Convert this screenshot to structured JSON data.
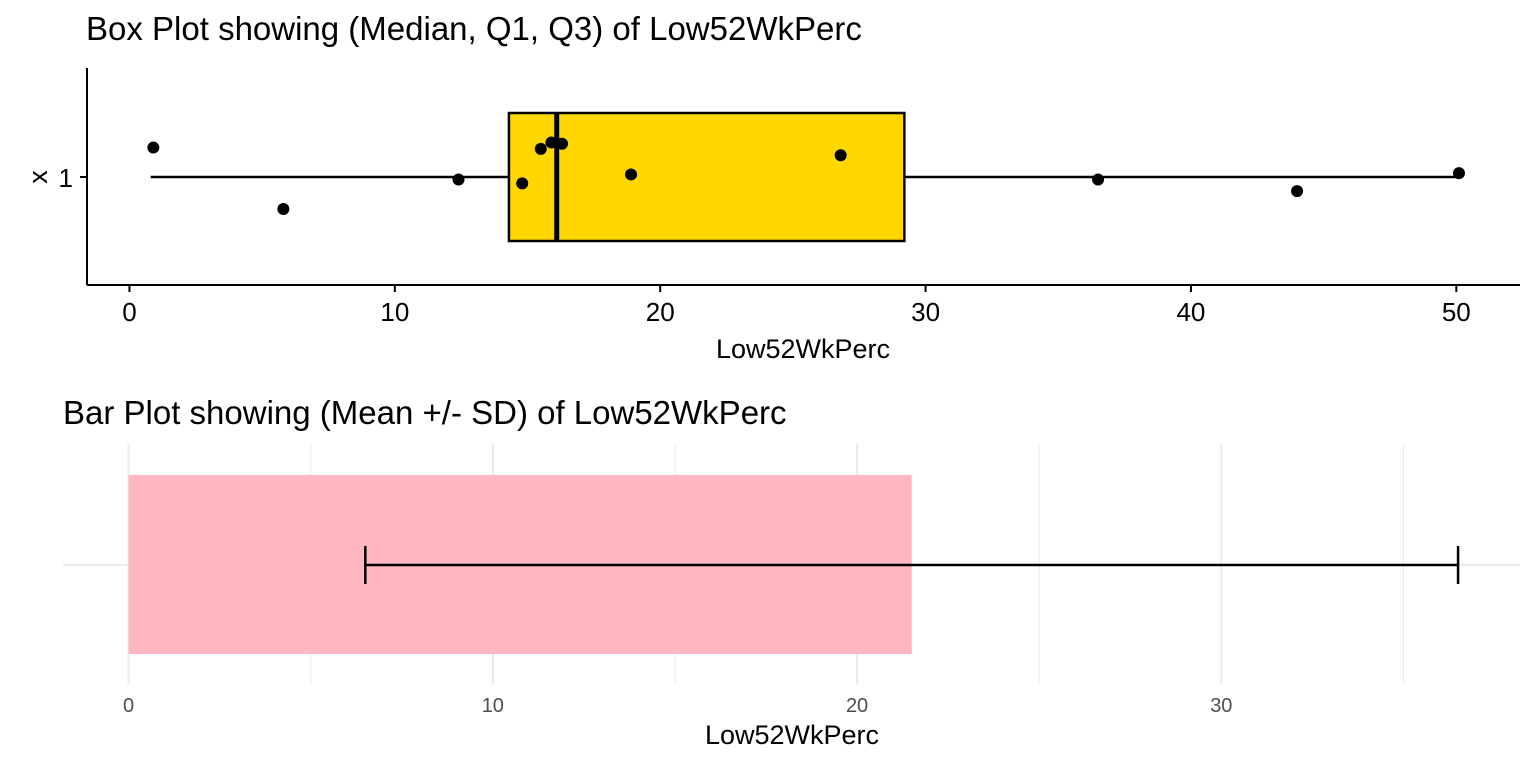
{
  "chart_data": [
    {
      "type": "box",
      "title": "Box Plot showing (Median, Q1, Q3) of Low52WkPerc",
      "xlabel": "Low52WkPerc",
      "ylabel": "x",
      "y_category": "1",
      "xlim": [
        -1.6,
        52.4
      ],
      "x_ticks": [
        0,
        10,
        20,
        30,
        40,
        50
      ],
      "box": {
        "min": 0.8,
        "q1": 14.3,
        "median": 16.1,
        "q3": 29.2,
        "max": 50.1
      },
      "points": [
        {
          "x": 0.9,
          "jitter": 0.23
        },
        {
          "x": 5.8,
          "jitter": -0.25
        },
        {
          "x": 12.4,
          "jitter": -0.02
        },
        {
          "x": 14.8,
          "jitter": -0.05
        },
        {
          "x": 15.5,
          "jitter": 0.22
        },
        {
          "x": 15.9,
          "jitter": 0.27
        },
        {
          "x": 16.3,
          "jitter": 0.26
        },
        {
          "x": 18.9,
          "jitter": 0.02
        },
        {
          "x": 26.8,
          "jitter": 0.17
        },
        {
          "x": 36.5,
          "jitter": -0.02
        },
        {
          "x": 44.0,
          "jitter": -0.11
        },
        {
          "x": 50.1,
          "jitter": 0.03
        }
      ],
      "colors": {
        "box_fill": "#FFD700",
        "outline": "#000000",
        "points": "#000000"
      }
    },
    {
      "type": "bar",
      "title": "Bar Plot showing (Mean +/- SD) of Low52WkPerc",
      "xlabel": "Low52WkPerc",
      "xlim": [
        -1.8,
        38.2
      ],
      "x_ticks": [
        0,
        10,
        20,
        30
      ],
      "grid": true,
      "mean": 21.5,
      "sd_low": 6.5,
      "sd_high": 36.5,
      "colors": {
        "bar_fill": "#FFB6C1",
        "errorbar": "#000000",
        "grid": "#EBEBEB",
        "tick_text": "#4D4D4D"
      }
    }
  ]
}
